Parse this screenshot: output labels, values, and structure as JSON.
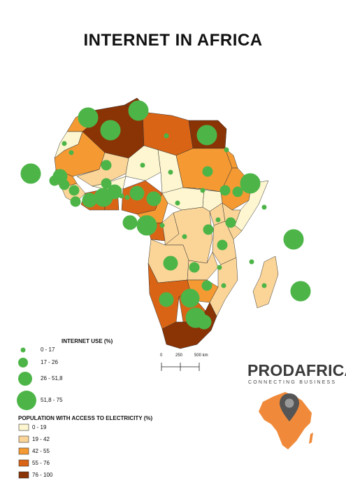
{
  "title": "INTERNET IN AFRICA",
  "internet_legend": {
    "title": "INTERNET USE (%)",
    "items": [
      {
        "label": "0 - 17"
      },
      {
        "label": "17 - 26"
      },
      {
        "label": "26 - 51,8"
      },
      {
        "label": "51,8 - 75"
      }
    ],
    "color": "#4db548"
  },
  "electricity_legend": {
    "title": "POPULATION WITH ACCESS TO ELECTRICITY (%)",
    "items": [
      {
        "label": "0 - 19",
        "color": "#fdf6d0"
      },
      {
        "label": "19 - 42",
        "color": "#fbd598"
      },
      {
        "label": "42 - 55",
        "color": "#f59a32"
      },
      {
        "label": "55 - 76",
        "color": "#d96415"
      },
      {
        "label": "76 - 100",
        "color": "#8a3305"
      }
    ]
  },
  "scale": {
    "labels": [
      "0",
      "250",
      "500 km"
    ]
  },
  "brand": {
    "name": "PRODAFRICA",
    "tagline": "CONNECTING BUSINESS",
    "accent": "#f08a3a"
  }
}
